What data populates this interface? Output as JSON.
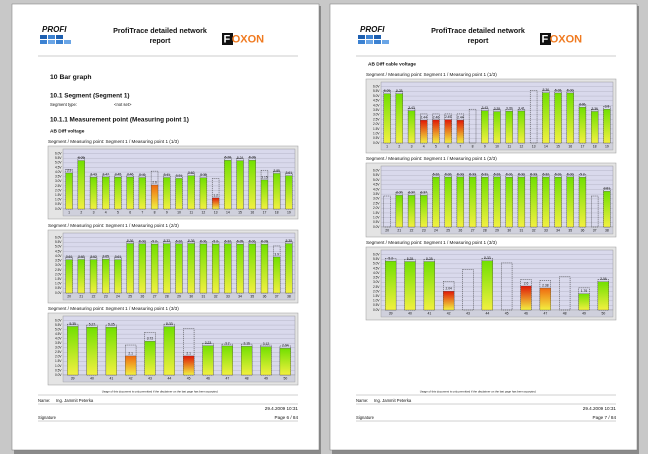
{
  "pages": [
    {
      "header": {
        "logo": "PROFI",
        "title": [
          "ProfiTrace detailed network",
          "report"
        ],
        "brand": "FOXON"
      },
      "headings": [
        {
          "text": "10 Bar graph",
          "level": 1
        },
        {
          "text": "10.1 Segment (Segment 1)",
          "level": 2
        },
        {
          "text": "10.1.1 Measurement point (Measuring point 1)",
          "level": 2
        },
        {
          "text": "AB Diff voltage",
          "level": 3
        }
      ],
      "segment_type": {
        "label": "Segment type:",
        "value": "<not set>"
      },
      "charts": [
        {
          "title": "Segment / Measuring point: Segment 1 / Measuring point 1 (1/3)",
          "categories": [
            "1",
            "2",
            "3",
            "4",
            "5",
            "6",
            "7",
            "8",
            "9",
            "10",
            "11",
            "12",
            "13",
            "14",
            "15",
            "16",
            "17",
            "18",
            "19"
          ],
          "values": [
            3.9,
            5.25,
            3.43,
            3.47,
            3.45,
            3.46,
            3.41,
            2.6,
            3.41,
            3.31,
            3.62,
            3.38,
            1.2,
            5.28,
            5.24,
            5.28,
            3.15,
            3.85,
            3.61
          ],
          "max": [
            4.3,
            5.6,
            3.7,
            3.7,
            3.7,
            3.7,
            3.7,
            4.1,
            3.7,
            3.6,
            3.9,
            3.7,
            3.3,
            5.6,
            5.5,
            5.6,
            4.2,
            4.1,
            3.9
          ],
          "colors": [
            "#72e000",
            "#72e000",
            "#72e000",
            "#72e000",
            "#72e000",
            "#72e000",
            "#72e000",
            "#f06a10",
            "#72e000",
            "#72e000",
            "#72e000",
            "#72e000",
            "#e01808",
            "#72e000",
            "#72e000",
            "#72e000",
            "#72e000",
            "#72e000",
            "#72e000"
          ],
          "ylim": [
            0,
            6.5
          ],
          "yticks": [
            {
              "value": 0,
              "label": "0.0V"
            },
            {
              "value": 0.5,
              "label": "0.5V"
            },
            {
              "value": 1,
              "label": "1.0V"
            },
            {
              "value": 1.5,
              "label": "1.5V"
            },
            {
              "value": 2,
              "label": "2.0V"
            },
            {
              "value": 2.5,
              "label": "2.5V"
            },
            {
              "value": 3,
              "label": "3.0V"
            },
            {
              "value": 3.5,
              "label": "3.5V"
            },
            {
              "value": 4,
              "label": "4.0V"
            },
            {
              "value": 4.5,
              "label": "4.5V"
            },
            {
              "value": 5,
              "label": "5.0V"
            },
            {
              "value": 5.5,
              "label": "5.5V"
            },
            {
              "value": 6,
              "label": "6.0V"
            }
          ]
        },
        {
          "title": "Segment / Measuring point: Segment 1 / Measuring point 1 (2/3)",
          "categories": [
            "20",
            "21",
            "22",
            "23",
            "24",
            "25",
            "26",
            "27",
            "28",
            "29",
            "30",
            "31",
            "32",
            "33",
            "34",
            "35",
            "36",
            "37",
            "38"
          ],
          "values": [
            3.61,
            3.63,
            3.62,
            3.65,
            3.61,
            5.36,
            5.32,
            5.3,
            5.33,
            5.32,
            5.36,
            5.31,
            5.3,
            5.32,
            5.29,
            5.31,
            5.28,
            3.9,
            5.35
          ],
          "max": [
            3.9,
            3.9,
            3.9,
            3.9,
            3.9,
            5.6,
            5.6,
            5.6,
            5.6,
            5.6,
            5.6,
            5.6,
            5.6,
            5.6,
            5.6,
            5.6,
            5.6,
            5.1,
            5.6
          ],
          "colors": [
            "#72e000",
            "#72e000",
            "#72e000",
            "#72e000",
            "#72e000",
            "#72e000",
            "#72e000",
            "#72e000",
            "#72e000",
            "#72e000",
            "#72e000",
            "#72e000",
            "#72e000",
            "#72e000",
            "#72e000",
            "#72e000",
            "#72e000",
            "#72e000",
            "#72e000"
          ],
          "ylim": [
            0,
            6.5
          ],
          "yticks": [
            {
              "value": 0,
              "label": "0.0V"
            },
            {
              "value": 0.5,
              "label": "0.5V"
            },
            {
              "value": 1,
              "label": "1.0V"
            },
            {
              "value": 1.5,
              "label": "1.5V"
            },
            {
              "value": 2,
              "label": "2.0V"
            },
            {
              "value": 2.5,
              "label": "2.5V"
            },
            {
              "value": 3,
              "label": "3.0V"
            },
            {
              "value": 3.5,
              "label": "3.5V"
            },
            {
              "value": 4,
              "label": "4.0V"
            },
            {
              "value": 4.5,
              "label": "4.5V"
            },
            {
              "value": 5,
              "label": "5.0V"
            },
            {
              "value": 5.5,
              "label": "5.5V"
            },
            {
              "value": 6,
              "label": "6.0V"
            }
          ]
        },
        {
          "title": "Segment / Measuring point: Segment 1 / Measuring point 1 (3/3)",
          "categories": [
            "39",
            "40",
            "41",
            "42",
            "43",
            "44",
            "45",
            "46",
            "47",
            "48",
            "49",
            "50"
          ],
          "values": [
            5.35,
            5.27,
            5.25,
            2.1,
            3.72,
            5.33,
            2.1,
            3.23,
            3.2,
            3.16,
            3.12,
            2.94
          ],
          "max": [
            5.6,
            5.5,
            5.5,
            3.3,
            4.7,
            5.6,
            5.1,
            3.5,
            3.4,
            3.4,
            3.3,
            3.2
          ],
          "colors": [
            "#72e000",
            "#72e000",
            "#72e000",
            "#f06a10",
            "#72e000",
            "#72e000",
            "#e01808",
            "#72e000",
            "#72e000",
            "#72e000",
            "#72e000",
            "#72e000"
          ],
          "ylim": [
            0,
            6.5
          ],
          "yticks": [
            {
              "value": 0,
              "label": "0.0V"
            },
            {
              "value": 0.5,
              "label": "0.5V"
            },
            {
              "value": 1,
              "label": "1.0V"
            },
            {
              "value": 1.5,
              "label": "1.5V"
            },
            {
              "value": 2,
              "label": "2.0V"
            },
            {
              "value": 2.5,
              "label": "2.5V"
            },
            {
              "value": 3,
              "label": "3.0V"
            },
            {
              "value": 3.5,
              "label": "3.5V"
            },
            {
              "value": 4,
              "label": "4.0V"
            },
            {
              "value": 4.5,
              "label": "4.5V"
            },
            {
              "value": 5,
              "label": "5.0V"
            },
            {
              "value": 5.5,
              "label": "5.5V"
            },
            {
              "value": 6,
              "label": "6.0V"
            }
          ]
        }
      ],
      "footer": {
        "disclaimer": "Usage of this document is only permitted if the disclaimer on the last page has been accepted.",
        "name_label": "Name:",
        "name": "Ing. Jammit Peterka",
        "date": "29.4.2009 10:31",
        "signature": "Signature",
        "page": "Page 6 / 84"
      }
    },
    {
      "header": {
        "logo": "PROFI",
        "title": [
          "ProfiTrace detailed network",
          "report"
        ],
        "brand": "FOXON"
      },
      "headings": [
        {
          "text": "AB Diff cable voltage",
          "level": 3
        }
      ],
      "charts": [
        {
          "title": "Segment / Measuring point: Segment 1 / Measuring point 1 (1/3)",
          "categories": [
            "1",
            "2",
            "3",
            "4",
            "5",
            "6",
            "7",
            "8",
            "9",
            "10",
            "11",
            "12",
            "13",
            "14",
            "15",
            "16",
            "17",
            "18",
            "19"
          ],
          "values": [
            5.25,
            5.25,
            3.43,
            2.44,
            2.46,
            2.49,
            2.44,
            null,
            3.43,
            3.35,
            3.39,
            3.41,
            null,
            5.36,
            5.33,
            5.33,
            3.81,
            3.36,
            3.6
          ],
          "max": [
            5.6,
            5.5,
            3.7,
            3.1,
            3.1,
            3.1,
            3.1,
            3.6,
            3.7,
            3.6,
            3.6,
            3.6,
            5.6,
            5.6,
            5.6,
            5.6,
            4.1,
            3.6,
            3.9
          ],
          "colors": [
            "#72e000",
            "#72e000",
            "#72e000",
            "#e01808",
            "#e01808",
            "#e01808",
            "#e01808",
            "#72e000",
            "#72e000",
            "#72e000",
            "#72e000",
            "#72e000",
            "#72e000",
            "#72e000",
            "#72e000",
            "#72e000",
            "#72e000",
            "#72e000",
            "#72e000"
          ],
          "ylim": [
            0,
            6.5
          ],
          "yticks": [
            {
              "value": 0,
              "label": "0.0V"
            },
            {
              "value": 0.5,
              "label": "0.5V"
            },
            {
              "value": 1,
              "label": "1.0V"
            },
            {
              "value": 1.5,
              "label": "1.5V"
            },
            {
              "value": 2,
              "label": "2.0V"
            },
            {
              "value": 2.5,
              "label": "2.5V"
            },
            {
              "value": 3,
              "label": "3.0V"
            },
            {
              "value": 3.5,
              "label": "3.5V"
            },
            {
              "value": 4,
              "label": "4.0V"
            },
            {
              "value": 4.5,
              "label": "4.5V"
            },
            {
              "value": 5,
              "label": "5.0V"
            },
            {
              "value": 5.5,
              "label": "5.5V"
            },
            {
              "value": 6,
              "label": "6.0V"
            }
          ]
        },
        {
          "title": "Segment / Measuring point: Segment 1 / Measuring point 1 (2/3)",
          "categories": [
            "20",
            "21",
            "22",
            "23",
            "24",
            "25",
            "26",
            "27",
            "28",
            "29",
            "30",
            "31",
            "32",
            "33",
            "34",
            "35",
            "36",
            "37",
            "38"
          ],
          "values": [
            null,
            3.37,
            3.37,
            3.37,
            5.32,
            5.32,
            5.33,
            5.33,
            5.31,
            5.33,
            5.31,
            5.32,
            5.33,
            5.32,
            5.31,
            5.33,
            5.3,
            null,
            3.81
          ],
          "max": [
            3.3,
            3.7,
            3.7,
            3.7,
            5.6,
            5.6,
            5.6,
            5.6,
            5.6,
            5.6,
            5.6,
            5.6,
            5.6,
            5.6,
            5.6,
            5.6,
            5.6,
            3.3,
            4.1
          ],
          "colors": [
            "#72e000",
            "#72e000",
            "#72e000",
            "#72e000",
            "#72e000",
            "#72e000",
            "#72e000",
            "#72e000",
            "#72e000",
            "#72e000",
            "#72e000",
            "#72e000",
            "#72e000",
            "#72e000",
            "#72e000",
            "#72e000",
            "#72e000",
            "#72e000",
            "#72e000"
          ],
          "ylim": [
            0,
            6.5
          ],
          "yticks": [
            {
              "value": 0,
              "label": "0.0V"
            },
            {
              "value": 0.5,
              "label": "0.5V"
            },
            {
              "value": 1,
              "label": "1.0V"
            },
            {
              "value": 1.5,
              "label": "1.5V"
            },
            {
              "value": 2,
              "label": "2.0V"
            },
            {
              "value": 2.5,
              "label": "2.5V"
            },
            {
              "value": 3,
              "label": "3.0V"
            },
            {
              "value": 3.5,
              "label": "3.5V"
            },
            {
              "value": 4,
              "label": "4.0V"
            },
            {
              "value": 4.5,
              "label": "4.5V"
            },
            {
              "value": 5,
              "label": "5.0V"
            },
            {
              "value": 5.5,
              "label": "5.5V"
            },
            {
              "value": 6,
              "label": "6.0V"
            }
          ]
        },
        {
          "title": "Segment / Measuring point: Segment 1 / Measuring point 1 (3/3)",
          "categories": [
            "39",
            "40",
            "41",
            "42",
            "43",
            "44",
            "45",
            "46",
            "47",
            "48",
            "49",
            "50"
          ],
          "values": [
            5.3,
            5.25,
            5.25,
            2.04,
            null,
            5.33,
            null,
            2.6,
            2.38,
            null,
            1.76,
            3.06
          ],
          "max": [
            5.6,
            5.5,
            5.5,
            3.1,
            4.4,
            5.6,
            5.1,
            3.3,
            3.2,
            3.6,
            2.4,
            3.3
          ],
          "colors": [
            "#72e000",
            "#72e000",
            "#72e000",
            "#e01808",
            "#72e000",
            "#72e000",
            "#72e000",
            "#e01808",
            "#f06a10",
            "#72e000",
            "#72e000",
            "#72e000"
          ],
          "ylim": [
            0,
            6.5
          ],
          "yticks": [
            {
              "value": 0,
              "label": "0.0V"
            },
            {
              "value": 0.5,
              "label": "0.5V"
            },
            {
              "value": 1,
              "label": "1.0V"
            },
            {
              "value": 1.5,
              "label": "1.5V"
            },
            {
              "value": 2,
              "label": "2.0V"
            },
            {
              "value": 2.5,
              "label": "2.5V"
            },
            {
              "value": 3,
              "label": "3.0V"
            },
            {
              "value": 3.5,
              "label": "3.5V"
            },
            {
              "value": 4,
              "label": "4.0V"
            },
            {
              "value": 4.5,
              "label": "4.5V"
            },
            {
              "value": 5,
              "label": "5.0V"
            },
            {
              "value": 5.5,
              "label": "5.5V"
            },
            {
              "value": 6,
              "label": "6.0V"
            }
          ]
        }
      ],
      "footer": {
        "disclaimer": "Usage of this document is only permitted if the disclaimer on the last page has been accepted.",
        "name_label": "Name:",
        "name": "Ing. Jammit Peterka",
        "date": "29.4.2009 10:31",
        "signature": "Signature",
        "page": "Page 7 / 84"
      }
    }
  ]
}
